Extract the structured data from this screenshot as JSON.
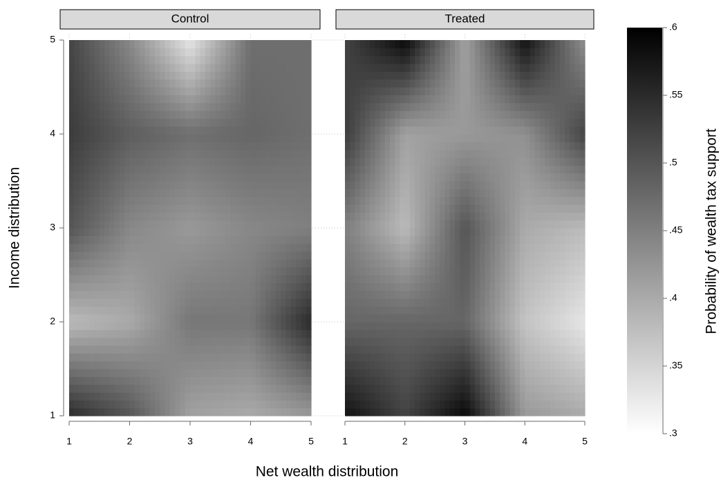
{
  "chart_data": {
    "type": "contour",
    "x_label": "Net wealth distribution",
    "y_label": "Income distribution",
    "x": [
      1,
      2,
      3,
      4,
      5
    ],
    "y": [
      1,
      2,
      3,
      4,
      5
    ],
    "xlim": [
      1,
      5
    ],
    "ylim": [
      1,
      5
    ],
    "xticks": [
      1,
      2,
      3,
      4,
      5
    ],
    "yticks": [
      1,
      2,
      3,
      4,
      5
    ],
    "grid": true,
    "panels": [
      {
        "title": "Control",
        "z": [
          [
            0.55,
            0.5,
            0.41,
            0.4,
            0.42
          ],
          [
            0.38,
            0.4,
            0.46,
            0.46,
            0.55
          ],
          [
            0.5,
            0.44,
            0.42,
            0.44,
            0.45
          ],
          [
            0.53,
            0.49,
            0.47,
            0.48,
            0.47
          ],
          [
            0.52,
            0.44,
            0.33,
            0.47,
            0.47
          ]
        ]
      },
      {
        "title": "Treated",
        "z": [
          [
            0.58,
            0.52,
            0.59,
            0.42,
            0.4
          ],
          [
            0.48,
            0.48,
            0.48,
            0.37,
            0.33
          ],
          [
            0.45,
            0.38,
            0.5,
            0.4,
            0.38
          ],
          [
            0.53,
            0.41,
            0.42,
            0.43,
            0.52
          ],
          [
            0.52,
            0.59,
            0.41,
            0.58,
            0.43
          ]
        ]
      }
    ],
    "colorbar": {
      "label": "Probability of wealth tax support",
      "zlim": [
        0.3,
        0.6
      ],
      "colors": [
        "#ffffff",
        "#000000"
      ],
      "zticks": [
        {
          "value": 0.3,
          "label": ".3"
        },
        {
          "value": 0.35,
          "label": ".35"
        },
        {
          "value": 0.4,
          "label": ".4"
        },
        {
          "value": 0.45,
          "label": ".45"
        },
        {
          "value": 0.5,
          "label": ".5"
        },
        {
          "value": 0.55,
          "label": ".55"
        },
        {
          "value": 0.6,
          "label": ".6"
        }
      ]
    }
  }
}
